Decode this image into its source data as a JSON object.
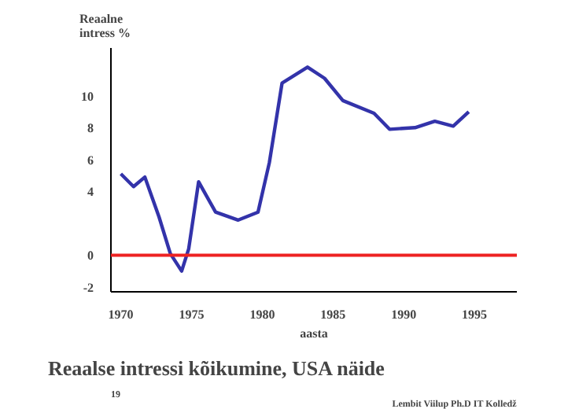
{
  "chart_data": {
    "type": "line",
    "title": "Reaalse intressi kõikumine, USA näide",
    "xlabel": "aasta",
    "ylabel": "Reaalne\nintress %",
    "x": [
      1970,
      1970.9,
      1971.7,
      1972.7,
      1973.5,
      1974.3,
      1974.8,
      1975.5,
      1976.7,
      1978.3,
      1979.7,
      1980.5,
      1981.4,
      1983.2,
      1984.4,
      1985.7,
      1987.9,
      1989.0,
      1990.8,
      1992.2,
      1993.5,
      1994.6
    ],
    "series": [
      {
        "color": "#3333aa",
        "values": [
          5.1,
          4.3,
          4.9,
          2.4,
          0.1,
          -1.0,
          0.4,
          4.6,
          2.7,
          2.2,
          2.7,
          5.8,
          10.8,
          11.8,
          11.1,
          9.7,
          8.9,
          7.9,
          8.0,
          8.4,
          8.1,
          9.0
        ]
      }
    ],
    "xlim": [
      1969.3,
      1998
    ],
    "ylim": [
      -2.3,
      13
    ],
    "xticks": [
      1970,
      1975,
      1980,
      1985,
      1990,
      1995
    ],
    "yticks": [
      -2,
      0,
      4,
      6,
      8,
      10
    ],
    "ref_lines": [
      {
        "axis": "y",
        "value": 0,
        "color": "#ee2222"
      }
    ],
    "grid": false,
    "marker": "none",
    "line_style": "solid",
    "annotations": [
      "19",
      "Lembit Viilup Ph.D IT Kolledž"
    ]
  }
}
